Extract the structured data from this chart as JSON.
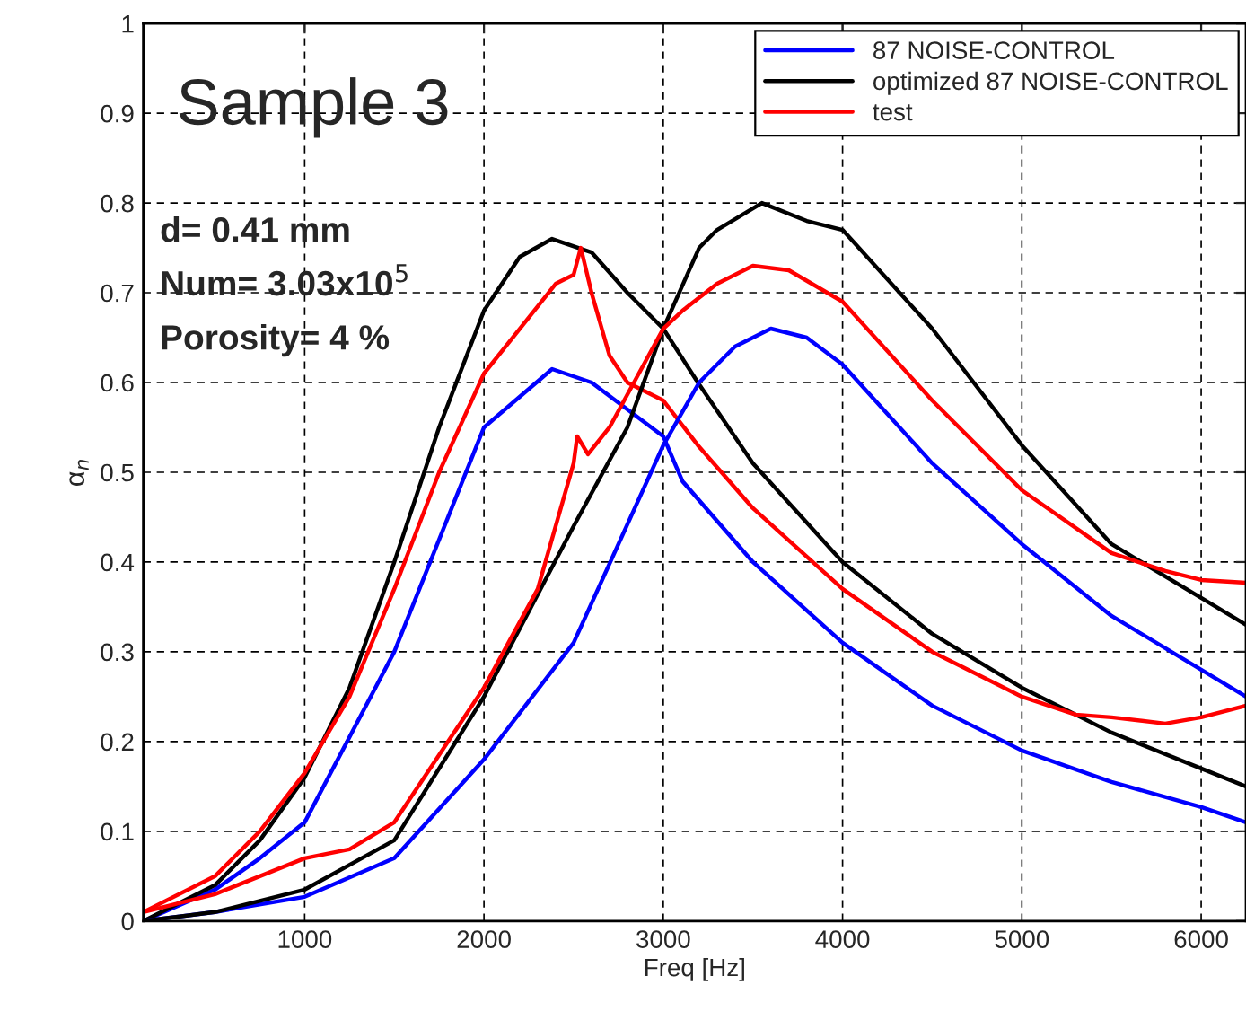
{
  "chart_data": {
    "type": "line",
    "xlabel": "Freq [Hz]",
    "ylabel": "α$_{n}$",
    "annotations": [
      "Sample 3",
      "d= 0.41 mm",
      "Num= 3.03x10$^{5}$",
      "Porosity= 4 %"
    ],
    "xlim": [
      100,
      6250
    ],
    "xticks": [
      1000,
      2000,
      3000,
      4000,
      5000,
      6000
    ],
    "ylim": [
      0,
      1
    ],
    "yticks": [
      0,
      0.1,
      0.2,
      0.3,
      0.4,
      0.5,
      0.6,
      0.7,
      0.8,
      0.9,
      1
    ],
    "grid": true,
    "legend": "top right",
    "line_style": "solid",
    "marker": "none",
    "series": [
      {
        "name": "87 NOISE-CONTROL",
        "color": "#0000ff",
        "x": [
          100,
          500,
          750,
          1000,
          1500,
          2000,
          2380,
          2600,
          3000,
          3107,
          3500,
          4000,
          4500,
          5000,
          5500,
          6000,
          6250
        ],
        "values": [
          0,
          0.035,
          0.07,
          0.11,
          0.3,
          0.55,
          0.615,
          0.6,
          0.54,
          0.49,
          0.4,
          0.31,
          0.24,
          0.19,
          0.155,
          0.127,
          0.11
        ]
      },
      {
        "name": "optimized 87 NOISE-CONTROL",
        "color": "#000000",
        "x": [
          100,
          500,
          750,
          1000,
          1250,
          1500,
          1750,
          2000,
          2200,
          2380,
          2600,
          2800,
          3000,
          3193,
          3500,
          4000,
          4500,
          5000,
          5500,
          6000,
          6250
        ],
        "values": [
          0,
          0.04,
          0.09,
          0.16,
          0.26,
          0.4,
          0.55,
          0.68,
          0.74,
          0.76,
          0.745,
          0.7,
          0.66,
          0.6,
          0.51,
          0.4,
          0.32,
          0.26,
          0.21,
          0.17,
          0.15
        ]
      },
      {
        "name": "test",
        "color": "#ff0000",
        "x": [
          100,
          500,
          750,
          1000,
          1250,
          1500,
          1750,
          2000,
          2200,
          2400,
          2500,
          2540,
          2600,
          2700,
          2800,
          3000,
          3193,
          3500,
          4000,
          4500,
          5000,
          5300,
          5500,
          5800,
          6000,
          6250
        ],
        "values": [
          0.01,
          0.05,
          0.1,
          0.165,
          0.25,
          0.37,
          0.5,
          0.61,
          0.66,
          0.71,
          0.72,
          0.75,
          0.7,
          0.63,
          0.6,
          0.58,
          0.53,
          0.46,
          0.37,
          0.3,
          0.25,
          0.23,
          0.227,
          0.22,
          0.227,
          0.24
        ]
      },
      {
        "color": "#0000ff",
        "x": [
          100,
          500,
          1000,
          1500,
          2000,
          2500,
          3000,
          3200,
          3400,
          3600,
          3800,
          4000,
          4500,
          5000,
          5500,
          6000,
          6250
        ],
        "values": [
          0,
          0.01,
          0.027,
          0.07,
          0.18,
          0.31,
          0.53,
          0.6,
          0.64,
          0.66,
          0.65,
          0.62,
          0.51,
          0.42,
          0.34,
          0.28,
          0.25
        ]
      },
      {
        "color": "#000000",
        "x": [
          100,
          500,
          1000,
          1500,
          2000,
          2500,
          2800,
          3000,
          3200,
          3300,
          3550,
          3800,
          4000,
          4500,
          5000,
          5500,
          6000,
          6250
        ],
        "values": [
          0,
          0.01,
          0.035,
          0.09,
          0.25,
          0.44,
          0.55,
          0.66,
          0.75,
          0.77,
          0.8,
          0.78,
          0.77,
          0.66,
          0.53,
          0.42,
          0.36,
          0.33
        ]
      },
      {
        "color": "#ff0000",
        "x": [
          100,
          500,
          750,
          1000,
          1250,
          1500,
          2000,
          2300,
          2500,
          2520,
          2580,
          2700,
          3000,
          3107,
          3300,
          3500,
          3700,
          4000,
          4500,
          5000,
          5500,
          5800,
          6000,
          6250
        ],
        "values": [
          0.01,
          0.03,
          0.05,
          0.07,
          0.08,
          0.11,
          0.26,
          0.37,
          0.51,
          0.54,
          0.52,
          0.55,
          0.66,
          0.68,
          0.71,
          0.73,
          0.725,
          0.69,
          0.58,
          0.48,
          0.41,
          0.39,
          0.38,
          0.377
        ]
      }
    ]
  }
}
